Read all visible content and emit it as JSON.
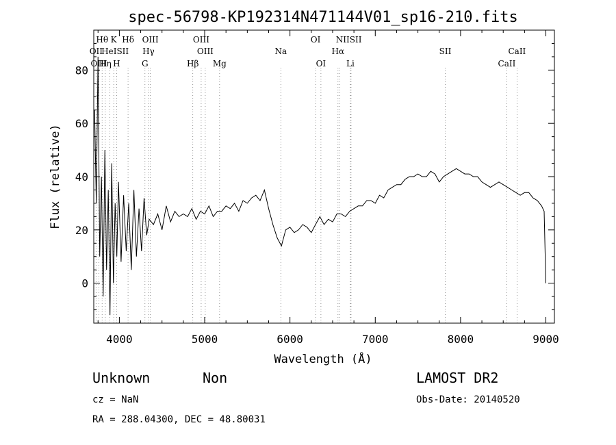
{
  "chart_data": {
    "type": "line",
    "title": "spec-56798-KP192314N471144V01_sp16-210.fits",
    "xlabel": "Wavelength (Å)",
    "ylabel": "Flux (relative)",
    "xlim": [
      3700,
      9100
    ],
    "ylim": [
      -15,
      95
    ],
    "xticks": [
      4000,
      5000,
      6000,
      7000,
      8000,
      9000
    ],
    "yticks": [
      0,
      20,
      40,
      60,
      80
    ],
    "grid": false,
    "series": [
      {
        "values_x": [
          3710,
          3730,
          3750,
          3770,
          3790,
          3810,
          3830,
          3850,
          3870,
          3890,
          3910,
          3930,
          3950,
          3970,
          3990,
          4020,
          4050,
          4080,
          4110,
          4140,
          4170,
          4200,
          4230,
          4260,
          4290,
          4320,
          4350,
          4400,
          4450,
          4500,
          4550,
          4600,
          4650,
          4700,
          4750,
          4800,
          4850,
          4900,
          4950,
          5000,
          5050,
          5100,
          5150,
          5200,
          5250,
          5300,
          5350,
          5400,
          5450,
          5500,
          5550,
          5600,
          5650,
          5700,
          5750,
          5800,
          5850,
          5900,
          5950,
          6000,
          6050,
          6100,
          6150,
          6200,
          6250,
          6300,
          6350,
          6400,
          6450,
          6500,
          6550,
          6600,
          6650,
          6700,
          6750,
          6800,
          6850,
          6900,
          6950,
          7000,
          7050,
          7100,
          7150,
          7200,
          7250,
          7300,
          7350,
          7400,
          7450,
          7500,
          7550,
          7600,
          7650,
          7700,
          7750,
          7800,
          7850,
          7900,
          7950,
          8000,
          8050,
          8100,
          8150,
          8200,
          8250,
          8300,
          8350,
          8400,
          8450,
          8500,
          8550,
          8600,
          8650,
          8700,
          8750,
          8800,
          8850,
          8900,
          8950,
          8980,
          9000
        ],
        "values_y": [
          65,
          30,
          85,
          10,
          40,
          -5,
          50,
          5,
          35,
          -12,
          45,
          0,
          30,
          10,
          38,
          8,
          33,
          12,
          30,
          5,
          35,
          10,
          28,
          12,
          32,
          18,
          24,
          22,
          26,
          20,
          29,
          23,
          27,
          25,
          26,
          25,
          28,
          24,
          27,
          26,
          29,
          25,
          27,
          27,
          29,
          28,
          30,
          27,
          31,
          30,
          32,
          33,
          31,
          35,
          28,
          22,
          17,
          14,
          20,
          21,
          19,
          20,
          22,
          21,
          19,
          22,
          25,
          22,
          24,
          23,
          26,
          26,
          25,
          27,
          28,
          29,
          29,
          31,
          31,
          30,
          33,
          32,
          35,
          36,
          37,
          37,
          39,
          40,
          40,
          41,
          40,
          40,
          42,
          41,
          38,
          40,
          41,
          42,
          43,
          42,
          41,
          41,
          40,
          40,
          38,
          37,
          36,
          37,
          38,
          37,
          36,
          35,
          34,
          33,
          34,
          34,
          32,
          31,
          29,
          27,
          0
        ]
      }
    ],
    "line_labels": [
      {
        "text": "Hθ",
        "x": 3798,
        "row": 1
      },
      {
        "text": "K",
        "x": 3934,
        "row": 1
      },
      {
        "text": "Hδ",
        "x": 4102,
        "row": 1
      },
      {
        "text": "OIII",
        "x": 4363,
        "row": 1
      },
      {
        "text": "OIII",
        "x": 4959,
        "row": 1
      },
      {
        "text": "OI",
        "x": 6300,
        "row": 1
      },
      {
        "text": "NIISII",
        "x": 6690,
        "row": 1
      },
      {
        "text": "OII",
        "x": 3727,
        "row": 2
      },
      {
        "text": "HeISII",
        "x": 3950,
        "row": 2
      },
      {
        "text": "Hγ",
        "x": 4341,
        "row": 2
      },
      {
        "text": "OIII",
        "x": 5007,
        "row": 2
      },
      {
        "text": "Na",
        "x": 5893,
        "row": 2
      },
      {
        "text": "Hα",
        "x": 6563,
        "row": 2
      },
      {
        "text": "SII",
        "x": 7820,
        "row": 2
      },
      {
        "text": "CaII",
        "x": 8662,
        "row": 2
      },
      {
        "text": "OIII",
        "x": 3760,
        "row": 3
      },
      {
        "text": "Hη",
        "x": 3835,
        "row": 3
      },
      {
        "text": "H",
        "x": 3968,
        "row": 3
      },
      {
        "text": "G",
        "x": 4300,
        "row": 3
      },
      {
        "text": "Hβ",
        "x": 4861,
        "row": 3
      },
      {
        "text": "Mg",
        "x": 5175,
        "row": 3
      },
      {
        "text": "OI",
        "x": 6363,
        "row": 3
      },
      {
        "text": "Li",
        "x": 6708,
        "row": 3
      },
      {
        "text": "CaII",
        "x": 8542,
        "row": 3
      }
    ],
    "line_markers": [
      3727,
      3760,
      3798,
      3835,
      3889,
      3934,
      3968,
      4102,
      4300,
      4341,
      4363,
      4861,
      4959,
      5007,
      5175,
      5893,
      6300,
      6363,
      6563,
      6583,
      6708,
      6716,
      7820,
      8542,
      8662
    ]
  },
  "footer": {
    "class": "Unknown",
    "subclass": "Non",
    "cz": "cz = NaN",
    "coords": "RA = 288.04300, DEC =  48.80031",
    "survey": "LAMOST DR2",
    "obs_date": "Obs-Date: 20140520"
  }
}
